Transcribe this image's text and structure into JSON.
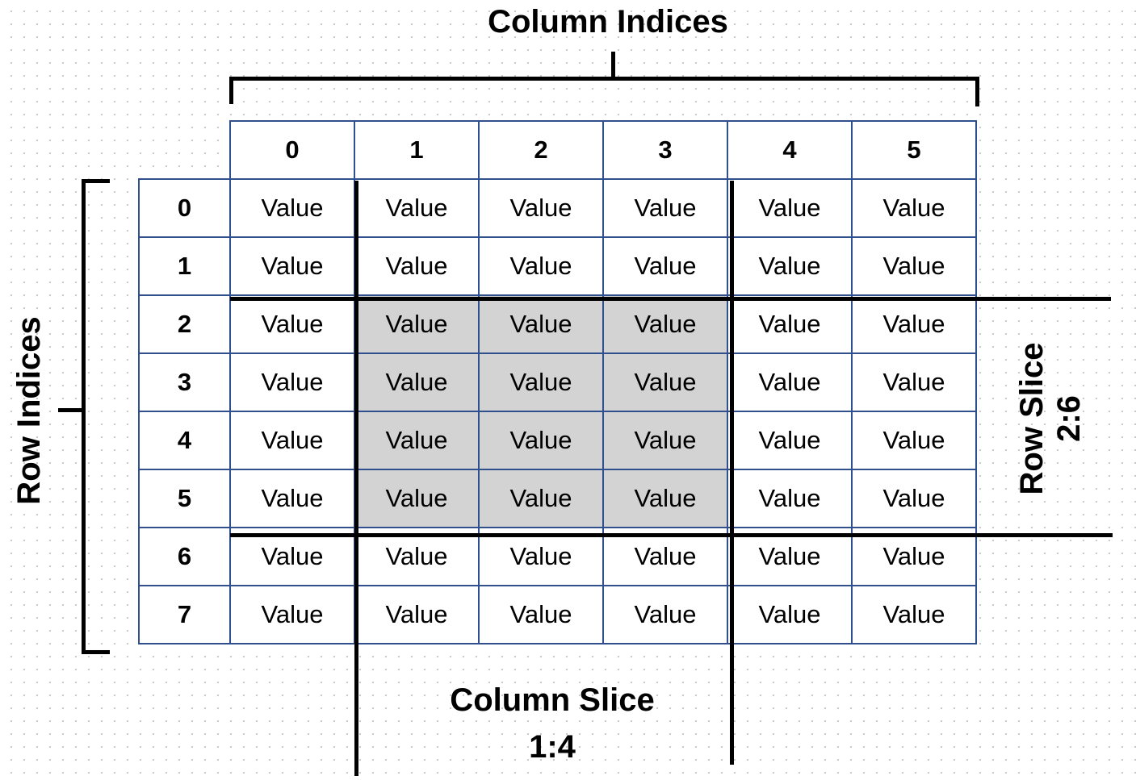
{
  "title_column_indices": "Column Indices",
  "title_row_indices": "Row Indices",
  "column_slice": {
    "label": "Column Slice",
    "range": "1:4",
    "start": 1,
    "stop": 4
  },
  "row_slice": {
    "label": "Row Slice",
    "range": "2:6",
    "start": 2,
    "stop": 6
  },
  "column_headers": [
    "0",
    "1",
    "2",
    "3",
    "4",
    "5"
  ],
  "row_headers": [
    "0",
    "1",
    "2",
    "3",
    "4",
    "5",
    "6",
    "7"
  ],
  "cell_text": "Value",
  "colors": {
    "grid_border": "#2f4f8f",
    "selection_fill": "#d3d3d3",
    "slice_lines": "#000000"
  }
}
